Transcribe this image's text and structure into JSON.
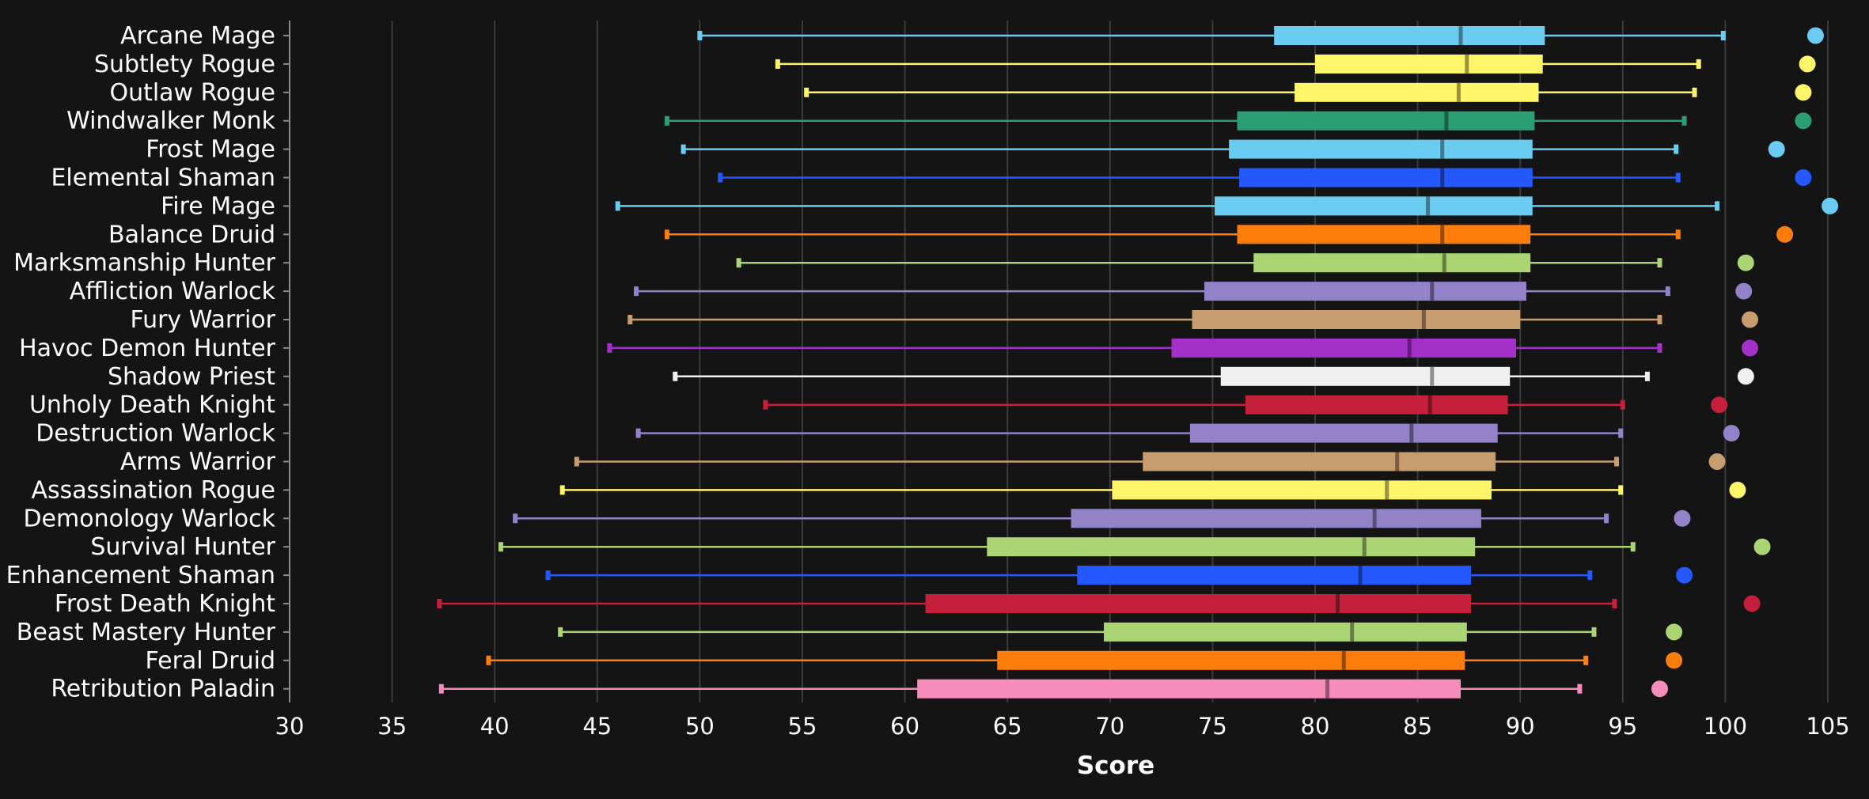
{
  "chart_data": {
    "type": "box",
    "orientation": "horizontal",
    "title": "",
    "xlabel": "Score",
    "ylabel": "",
    "xlim": [
      30,
      105
    ],
    "xticks": [
      30,
      35,
      40,
      45,
      50,
      55,
      60,
      65,
      70,
      75,
      80,
      85,
      90,
      95,
      100,
      105
    ],
    "grid": true,
    "legend": "none",
    "background": "#141414",
    "series": [
      {
        "name": "Arcane Mage",
        "color": "#69ccf0",
        "min": 50.0,
        "q1": 78.0,
        "median": 87.1,
        "q3": 91.2,
        "max": 99.9,
        "outlier": 104.4
      },
      {
        "name": "Subtlety Rogue",
        "color": "#fff569",
        "min": 53.8,
        "q1": 80.0,
        "median": 87.4,
        "q3": 91.1,
        "max": 98.7,
        "outlier": 104.0
      },
      {
        "name": "Outlaw Rogue",
        "color": "#fff569",
        "min": 55.2,
        "q1": 79.0,
        "median": 87.0,
        "q3": 90.9,
        "max": 98.5,
        "outlier": 103.8
      },
      {
        "name": "Windwalker Monk",
        "color": "#2c9e73",
        "min": 48.4,
        "q1": 76.2,
        "median": 86.4,
        "q3": 90.7,
        "max": 98.0,
        "outlier": 103.8
      },
      {
        "name": "Frost Mage",
        "color": "#69ccf0",
        "min": 49.2,
        "q1": 75.8,
        "median": 86.2,
        "q3": 90.6,
        "max": 97.6,
        "outlier": 102.5
      },
      {
        "name": "Elemental Shaman",
        "color": "#2459ff",
        "min": 51.0,
        "q1": 76.3,
        "median": 86.2,
        "q3": 90.6,
        "max": 97.7,
        "outlier": 103.8
      },
      {
        "name": "Fire Mage",
        "color": "#69ccf0",
        "min": 46.0,
        "q1": 75.1,
        "median": 85.5,
        "q3": 90.6,
        "max": 99.6,
        "outlier": 105.1
      },
      {
        "name": "Balance Druid",
        "color": "#ff7d0a",
        "min": 48.4,
        "q1": 76.2,
        "median": 86.2,
        "q3": 90.5,
        "max": 97.7,
        "outlier": 102.9
      },
      {
        "name": "Marksmanship Hunter",
        "color": "#abd473",
        "min": 51.9,
        "q1": 77.0,
        "median": 86.3,
        "q3": 90.5,
        "max": 96.8,
        "outlier": 101.0
      },
      {
        "name": "Affliction Warlock",
        "color": "#9482c9",
        "min": 46.9,
        "q1": 74.6,
        "median": 85.7,
        "q3": 90.3,
        "max": 97.2,
        "outlier": 100.9
      },
      {
        "name": "Fury Warrior",
        "color": "#c79c6e",
        "min": 46.6,
        "q1": 74.0,
        "median": 85.3,
        "q3": 90.0,
        "max": 96.8,
        "outlier": 101.2
      },
      {
        "name": "Havoc Demon Hunter",
        "color": "#a330c9",
        "min": 45.6,
        "q1": 73.0,
        "median": 84.6,
        "q3": 89.8,
        "max": 96.8,
        "outlier": 101.2
      },
      {
        "name": "Shadow Priest",
        "color": "#f0f0f0",
        "min": 48.8,
        "q1": 75.4,
        "median": 85.7,
        "q3": 89.5,
        "max": 96.2,
        "outlier": 101.0
      },
      {
        "name": "Unholy Death Knight",
        "color": "#c41f3b",
        "min": 53.2,
        "q1": 76.6,
        "median": 85.6,
        "q3": 89.4,
        "max": 95.0,
        "outlier": 99.7
      },
      {
        "name": "Destruction Warlock",
        "color": "#9482c9",
        "min": 47.0,
        "q1": 73.9,
        "median": 84.7,
        "q3": 88.9,
        "max": 94.9,
        "outlier": 100.3
      },
      {
        "name": "Arms Warrior",
        "color": "#c79c6e",
        "min": 44.0,
        "q1": 71.6,
        "median": 84.0,
        "q3": 88.8,
        "max": 94.7,
        "outlier": 99.6
      },
      {
        "name": "Assassination Rogue",
        "color": "#fff569",
        "min": 43.3,
        "q1": 70.1,
        "median": 83.5,
        "q3": 88.6,
        "max": 94.9,
        "outlier": 100.6
      },
      {
        "name": "Demonology Warlock",
        "color": "#9482c9",
        "min": 41.0,
        "q1": 68.1,
        "median": 82.9,
        "q3": 88.1,
        "max": 94.2,
        "outlier": 97.9
      },
      {
        "name": "Survival Hunter",
        "color": "#abd473",
        "min": 40.3,
        "q1": 64.0,
        "median": 82.4,
        "q3": 87.8,
        "max": 95.5,
        "outlier": 101.8
      },
      {
        "name": "Enhancement Shaman",
        "color": "#2459ff",
        "min": 42.6,
        "q1": 68.4,
        "median": 82.2,
        "q3": 87.6,
        "max": 93.4,
        "outlier": 98.0
      },
      {
        "name": "Frost Death Knight",
        "color": "#c41f3b",
        "min": 37.3,
        "q1": 61.0,
        "median": 81.1,
        "q3": 87.6,
        "max": 94.6,
        "outlier": 101.3
      },
      {
        "name": "Beast Mastery Hunter",
        "color": "#abd473",
        "min": 43.2,
        "q1": 69.7,
        "median": 81.8,
        "q3": 87.4,
        "max": 93.6,
        "outlier": 97.5
      },
      {
        "name": "Feral Druid",
        "color": "#ff7d0a",
        "min": 39.7,
        "q1": 64.5,
        "median": 81.4,
        "q3": 87.3,
        "max": 93.2,
        "outlier": 97.5
      },
      {
        "name": "Retribution Paladin",
        "color": "#f58cba",
        "min": 37.4,
        "q1": 60.6,
        "median": 80.6,
        "q3": 87.1,
        "max": 92.9,
        "outlier": 96.8
      }
    ]
  }
}
